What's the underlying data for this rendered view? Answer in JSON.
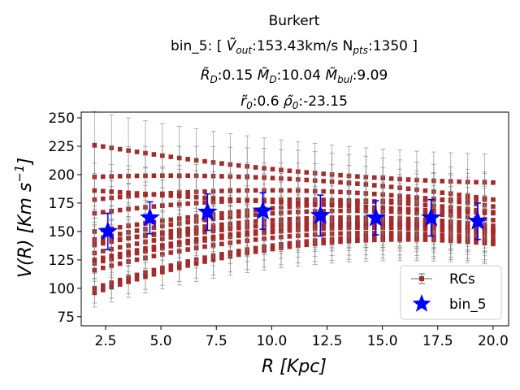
{
  "chart_data": {
    "type": "scatter",
    "title_lines": [
      "Burkert",
      "bin_5: [ Ṽ_out:153.43km/s N_pts:1350 ]",
      "R̃_D:0.15 M̃_D:10.04 M̃_bul:9.09",
      "r̃_0:0.6  ρ̃_0:-23.15"
    ],
    "title": {
      "line1": "Burkert",
      "l2_pre": "bin_5: [ ",
      "l2_vsym": "Ṽ",
      "l2_vsub": "out",
      "l2_vval": ":153.43km/s N",
      "l2_nsub": "pts",
      "l2_end": ":1350 ]",
      "l3_r": "R̃",
      "l3_rsub": "D",
      "l3_rval": ":0.15 ",
      "l3_m": "M̃",
      "l3_msub": "D",
      "l3_mval": ":10.04 ",
      "l3_b": "M̃",
      "l3_bsub": "bul",
      "l3_bval": ":9.09",
      "l4_r": "r̃",
      "l4_rsub": "0",
      "l4_rval": ":0.6  ",
      "l4_p": "ρ̃",
      "l4_psub": "0",
      "l4_pval": ":-23.15"
    },
    "xlabel": "R [Kpc]",
    "ylabel": "V(R) [Km s^-1]",
    "xlabel_parts": {
      "sym": "R",
      "unit": " [Kpc]"
    },
    "ylabel_parts": {
      "sym": "V(R) [Km s",
      "exp": "−1",
      "end": "]"
    },
    "xlim": [
      1.4,
      20.7
    ],
    "ylim": [
      67,
      255
    ],
    "xticks": [
      2.5,
      5.0,
      7.5,
      10.0,
      12.5,
      15.0,
      17.5,
      20.0
    ],
    "xtick_labels": [
      "2.5",
      "5.0",
      "7.5",
      "10.0",
      "12.5",
      "15.0",
      "17.5",
      "20.0"
    ],
    "yticks": [
      75,
      100,
      125,
      150,
      175,
      200,
      225,
      250
    ],
    "ytick_labels": [
      "75",
      "100",
      "125",
      "150",
      "175",
      "200",
      "225",
      "250"
    ],
    "legend": {
      "location": "lower-right",
      "entries": [
        "RCs",
        "bin_5"
      ]
    },
    "rc_r_range": [
      2.0,
      20.0
    ],
    "rc_error_fraction": 0.13,
    "rcs_series": [
      {
        "name": "rc_1",
        "v_start": 226,
        "v_end": 193,
        "v_mid": 203
      },
      {
        "name": "rc_2",
        "v_start": 198,
        "v_end": 178,
        "v_mid": 196
      },
      {
        "name": "rc_3",
        "v_start": 178,
        "v_end": 172,
        "v_mid": 186
      },
      {
        "name": "rc_4",
        "v_start": 166,
        "v_end": 167,
        "v_mid": 178
      },
      {
        "name": "rc_5",
        "v_start": 150,
        "v_end": 178,
        "v_mid": 172
      },
      {
        "name": "rc_6",
        "v_start": 143,
        "v_end": 160,
        "v_mid": 167
      },
      {
        "name": "rc_7",
        "v_start": 138,
        "v_end": 155,
        "v_mid": 161
      },
      {
        "name": "rc_8",
        "v_start": 131,
        "v_end": 151,
        "v_mid": 157
      },
      {
        "name": "rc_9",
        "v_start": 122,
        "v_end": 147,
        "v_mid": 151
      },
      {
        "name": "rc_10",
        "v_start": 116,
        "v_end": 143,
        "v_mid": 146
      },
      {
        "name": "rc_11",
        "v_start": 100,
        "v_end": 141,
        "v_mid": 140
      },
      {
        "name": "rc_12",
        "v_start": 96,
        "v_end": 139,
        "v_mid": 137
      },
      {
        "name": "rc_13",
        "v_start": 140,
        "v_end": 150,
        "v_mid": 156
      },
      {
        "name": "rc_14",
        "v_start": 125,
        "v_end": 152,
        "v_mid": 153
      },
      {
        "name": "rc_15",
        "v_start": 186,
        "v_end": 166,
        "v_mid": 175
      }
    ],
    "series": [
      {
        "name": "bin_5",
        "x": [
          2.6,
          4.5,
          7.1,
          9.6,
          12.2,
          14.7,
          17.2,
          19.3
        ],
        "y": [
          150,
          162,
          167,
          168,
          164,
          162,
          162,
          159
        ],
        "yerr": [
          16,
          14,
          16,
          16,
          18,
          15,
          16,
          16
        ]
      }
    ],
    "colors": {
      "rcs": "#a52a2a",
      "rcs_err": "#808080",
      "bin": "#0000ff"
    }
  }
}
